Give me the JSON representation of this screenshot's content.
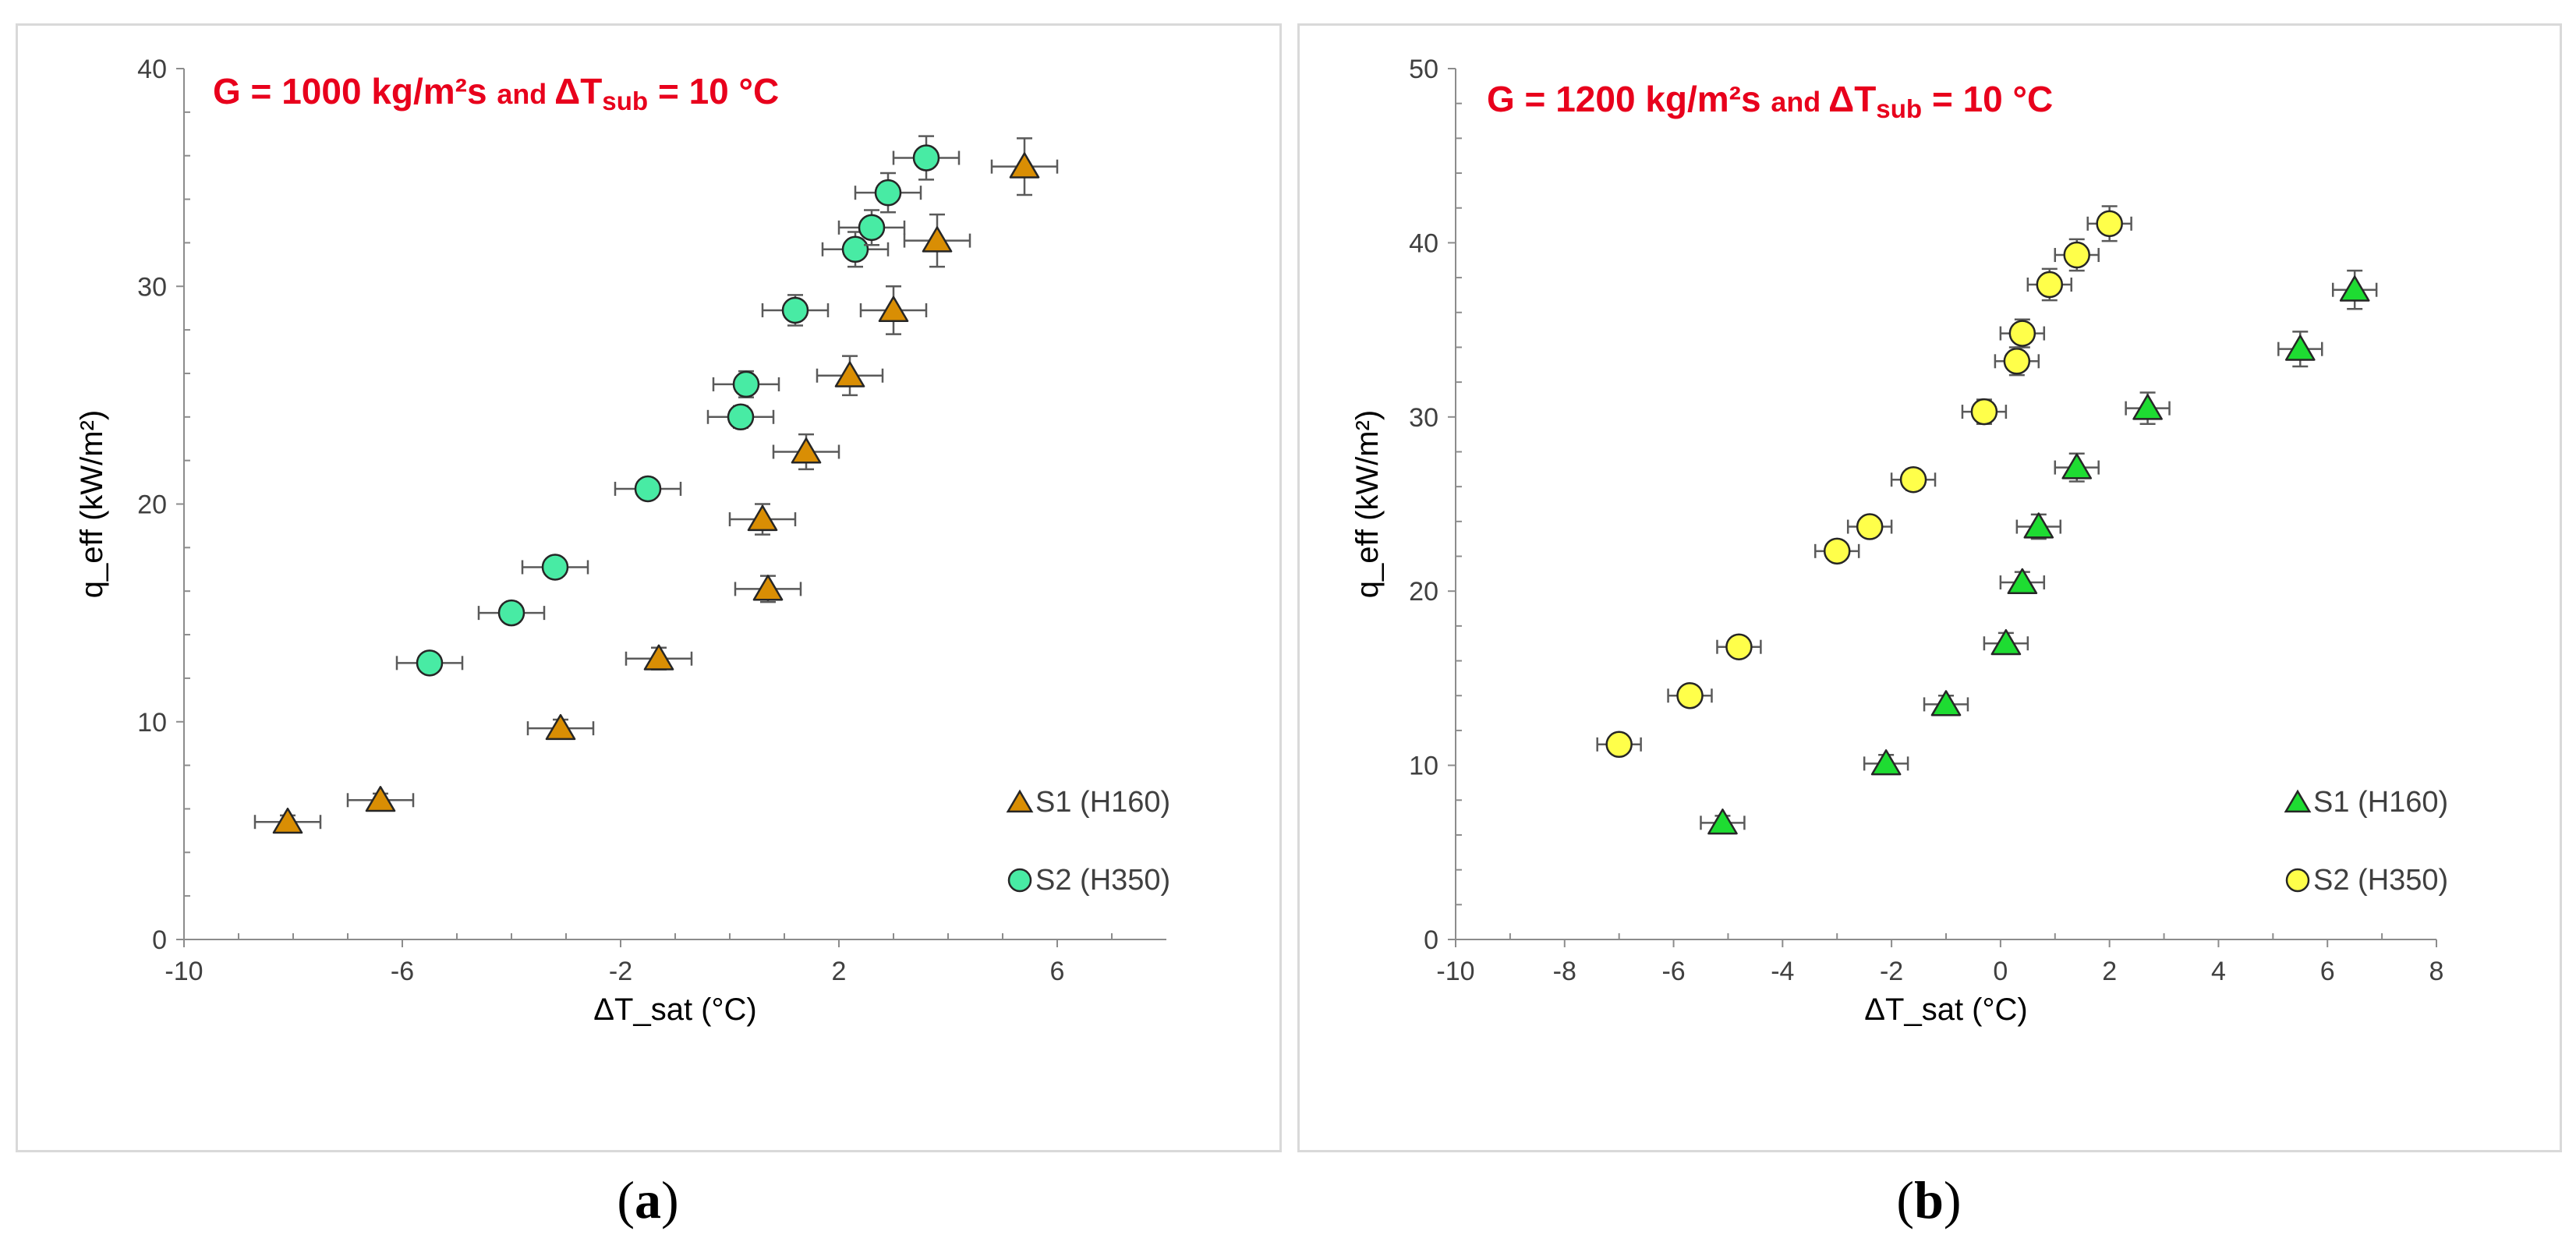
{
  "chart_data": [
    {
      "type": "scatter",
      "panel_label": "a",
      "title": {
        "prefix": "G = 1000 kg/m²s",
        "and": "and",
        "delta": "ΔT",
        "sub": "sub",
        "suffix": "= 10 °C"
      },
      "xlabel": "ΔT_sat (°C)",
      "ylabel": "q_eff (kW/m²)",
      "xlim": [
        -10,
        8
      ],
      "ylim": [
        0,
        40
      ],
      "xticks": [
        -10,
        -6,
        -2,
        2,
        6
      ],
      "yticks": [
        0,
        10,
        20,
        30,
        40
      ],
      "grid": false,
      "legend_position": "bottom-right",
      "series": [
        {
          "name": "S1 (H160)",
          "marker": "triangle",
          "color": "#d98e04",
          "x": [
            -8.1,
            -6.4,
            -3.1,
            -1.3,
            0.7,
            0.6,
            1.4,
            2.2,
            3.0,
            3.8,
            5.4
          ],
          "y": [
            5.4,
            6.4,
            9.7,
            12.9,
            16.1,
            19.3,
            22.4,
            25.9,
            28.9,
            32.1,
            35.5
          ],
          "xerr": 0.6,
          "yerr": [
            0.3,
            0.3,
            0.4,
            0.5,
            0.6,
            0.7,
            0.8,
            0.9,
            1.1,
            1.2,
            1.3
          ]
        },
        {
          "name": "S2 (H350)",
          "marker": "circle",
          "color": "#48eba4",
          "x": [
            -5.5,
            -4.0,
            -3.2,
            -1.5,
            0.2,
            0.3,
            1.2,
            2.3,
            2.6,
            2.9,
            3.6
          ],
          "y": [
            12.7,
            15.0,
            17.1,
            20.7,
            24.0,
            25.5,
            28.9,
            31.7,
            32.7,
            34.3,
            35.9
          ],
          "xerr": 0.6,
          "yerr": [
            0.3,
            0.3,
            0.4,
            0.4,
            0.5,
            0.6,
            0.7,
            0.8,
            0.8,
            0.9,
            1.0
          ]
        }
      ]
    },
    {
      "type": "scatter",
      "panel_label": "b",
      "title": {
        "prefix": "G = 1200 kg/m²s",
        "and": "and",
        "delta": "ΔT",
        "sub": "sub",
        "suffix": "= 10 °C"
      },
      "xlabel": "ΔT_sat (°C)",
      "ylabel": "q_eff (kW/m²)",
      "xlim": [
        -10,
        8
      ],
      "ylim": [
        0,
        50
      ],
      "xticks": [
        -10,
        -8,
        -6,
        -4,
        -2,
        0,
        2,
        4,
        6,
        8
      ],
      "yticks": [
        0,
        10,
        20,
        30,
        40,
        50
      ],
      "grid": false,
      "legend_position": "bottom-right",
      "series": [
        {
          "name": "S1 (H160)",
          "marker": "triangle",
          "color": "#1edc32",
          "x": [
            -5.1,
            -2.1,
            -1.0,
            0.1,
            0.4,
            0.7,
            1.4,
            2.7,
            5.5,
            6.5
          ],
          "y": [
            6.7,
            10.1,
            13.5,
            17.0,
            20.5,
            23.7,
            27.1,
            30.5,
            33.9,
            37.3
          ],
          "xerr": 0.4,
          "yerr": [
            0.4,
            0.5,
            0.5,
            0.6,
            0.6,
            0.7,
            0.8,
            0.9,
            1.0,
            1.1
          ]
        },
        {
          "name": "S2 (H350)",
          "marker": "circle",
          "color": "#ffff4a",
          "x": [
            -7.0,
            -5.7,
            -4.8,
            -3.0,
            -2.4,
            -1.6,
            -0.3,
            0.3,
            0.4,
            0.9,
            1.4,
            2.0
          ],
          "y": [
            11.2,
            14.0,
            16.8,
            22.3,
            23.7,
            26.4,
            30.3,
            33.2,
            34.8,
            37.6,
            39.3,
            41.1
          ],
          "xerr": 0.4,
          "yerr": [
            0.3,
            0.3,
            0.4,
            0.5,
            0.5,
            0.6,
            0.7,
            0.8,
            0.8,
            0.9,
            0.9,
            1.0
          ]
        }
      ]
    }
  ]
}
